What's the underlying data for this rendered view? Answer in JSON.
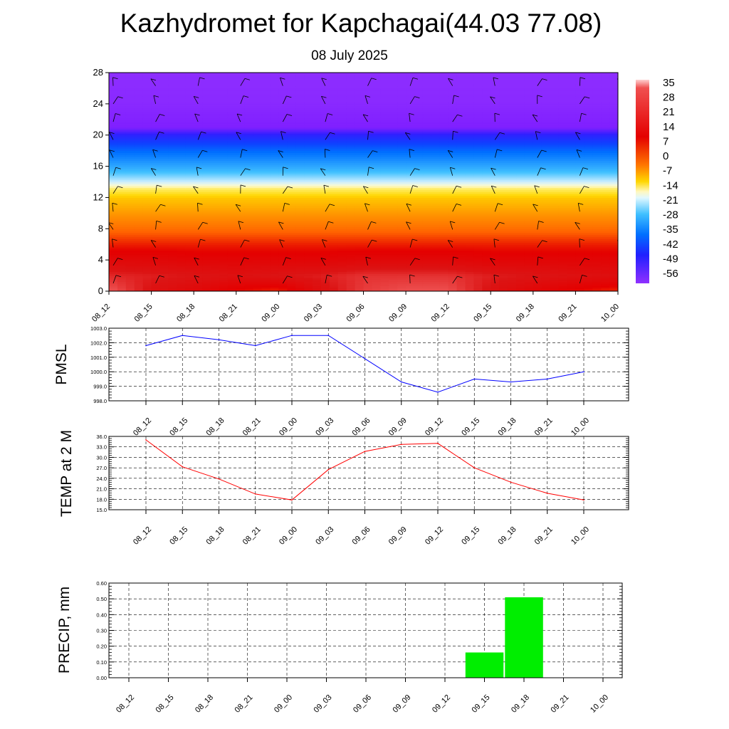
{
  "header": {
    "title": "Kazhydromet for Kapchagai(44.03 77.08)",
    "subtitle": "08 July 2025"
  },
  "time_labels": [
    "08_12",
    "08_15",
    "08_18",
    "08_21",
    "09_00",
    "09_03",
    "09_06",
    "09_09",
    "09_12",
    "09_15",
    "09_18",
    "09_21",
    "10_00"
  ],
  "chart_data": [
    {
      "type": "heatmap",
      "name": "temperature-cross-section",
      "x": [
        "08_12",
        "08_15",
        "08_18",
        "08_21",
        "09_00",
        "09_03",
        "09_06",
        "09_09",
        "09_12",
        "09_15",
        "09_18",
        "09_21",
        "10_00"
      ],
      "ylim": [
        0,
        28
      ],
      "yticks": [
        "0",
        "4",
        "8",
        "12",
        "16",
        "20",
        "24",
        "28"
      ],
      "colorbar": {
        "labels": [
          "35",
          "28",
          "21",
          "14",
          "7",
          "0",
          "-7",
          "-14",
          "-21",
          "-28",
          "-35",
          "-42",
          "-49",
          "-56"
        ],
        "range": [
          -63,
          42
        ]
      },
      "note_profile_levels": [
        0,
        2,
        4,
        6,
        8,
        10,
        12,
        13,
        14,
        16,
        18,
        20,
        21,
        22,
        24,
        26,
        28
      ],
      "values": [
        [
          35,
          27,
          24,
          20,
          18,
          26,
          32,
          34,
          34,
          27,
          23,
          20,
          18
        ],
        [
          30,
          29,
          28,
          27,
          28,
          29,
          31,
          31,
          31,
          29,
          28,
          27,
          26
        ],
        [
          24,
          24,
          23,
          23,
          23,
          23,
          24,
          24,
          24,
          23,
          23,
          23,
          23
        ],
        [
          19,
          19,
          19,
          19,
          19,
          19,
          19,
          19,
          19,
          19,
          19,
          19,
          19
        ],
        [
          13,
          13,
          13,
          13,
          13,
          13,
          13,
          13,
          13,
          13,
          13,
          13,
          13
        ],
        [
          8,
          8,
          8,
          8,
          8,
          8,
          8,
          8,
          8,
          8,
          8,
          8,
          8
        ],
        [
          2,
          2,
          2,
          2,
          2,
          2,
          2,
          2,
          2,
          2,
          2,
          2,
          2
        ],
        [
          -6,
          -6,
          -6,
          -6,
          -6,
          -6,
          -6,
          -6,
          -6,
          -6,
          -6,
          -6,
          -6
        ],
        [
          -14,
          -14,
          -14,
          -14,
          -14,
          -14,
          -14,
          -14,
          -14,
          -14,
          -14,
          -14,
          -14
        ],
        [
          -25,
          -25,
          -25,
          -25,
          -25,
          -25,
          -25,
          -25,
          -25,
          -25,
          -25,
          -25,
          -25
        ],
        [
          -36,
          -36,
          -36,
          -36,
          -36,
          -36,
          -36,
          -36,
          -36,
          -36,
          -36,
          -36,
          -36
        ],
        [
          -48,
          -48,
          -48,
          -48,
          -48,
          -48,
          -48,
          -48,
          -48,
          -48,
          -48,
          -48,
          -48
        ],
        [
          -56,
          -56,
          -56,
          -56,
          -56,
          -56,
          -56,
          -56,
          -56,
          -56,
          -56,
          -56,
          -56
        ],
        [
          -57,
          -57,
          -57,
          -57,
          -57,
          -57,
          -57,
          -57,
          -57,
          -57,
          -57,
          -57,
          -57
        ],
        [
          -60,
          -60,
          -60,
          -60,
          -60,
          -60,
          -60,
          -60,
          -60,
          -60,
          -60,
          -60,
          -60
        ],
        [
          -61,
          -61,
          -61,
          -61,
          -61,
          -61,
          -61,
          -61,
          -61,
          -61,
          -61,
          -61,
          -61
        ],
        [
          -62,
          -62,
          -62,
          -62,
          -62,
          -62,
          -62,
          -62,
          -62,
          -62,
          -62,
          -62,
          -62
        ]
      ],
      "wind_barbs": "shown"
    },
    {
      "type": "line",
      "name": "pmsl",
      "ylabel": "PMSL",
      "ylim": [
        998.0,
        1003.0
      ],
      "yticks": [
        "998.0",
        "999.0",
        "1000.0",
        "1001.0",
        "1002.0",
        "1003.0"
      ],
      "categories": [
        "08_12",
        "08_15",
        "08_18",
        "08_21",
        "09_00",
        "09_03",
        "09_06",
        "09_09",
        "09_12",
        "09_15",
        "09_18",
        "09_21",
        "10_00"
      ],
      "values": [
        1001.8,
        1002.5,
        1002.2,
        1001.8,
        1002.5,
        1002.5,
        1000.9,
        999.3,
        998.6,
        999.5,
        999.3,
        999.5,
        1000.0
      ],
      "color": "#0000ff",
      "grid": true
    },
    {
      "type": "line",
      "name": "temp-2m",
      "ylabel": "TEMP at 2 M",
      "ylim": [
        15.0,
        36.0
      ],
      "yticks": [
        "15.0",
        "18.0",
        "21.0",
        "24.0",
        "27.0",
        "30.0",
        "33.0",
        "36.0"
      ],
      "categories": [
        "08_12",
        "08_15",
        "08_18",
        "08_21",
        "09_00",
        "09_03",
        "09_06",
        "09_09",
        "09_12",
        "09_15",
        "09_18",
        "09_21",
        "10_00"
      ],
      "values": [
        35.0,
        27.3,
        23.8,
        19.5,
        17.8,
        26.5,
        31.7,
        33.7,
        34.0,
        27.0,
        22.9,
        19.7,
        17.8
      ],
      "color": "#ff0000",
      "grid": true
    },
    {
      "type": "bar",
      "name": "precip",
      "ylabel": "PRECIP, mm",
      "ylim": [
        0.0,
        0.6
      ],
      "yticks": [
        "0.00",
        "0.10",
        "0.20",
        "0.30",
        "0.40",
        "0.50",
        "0.60"
      ],
      "categories": [
        "08_12",
        "08_15",
        "08_18",
        "08_21",
        "09_00",
        "09_03",
        "09_06",
        "09_09",
        "09_12",
        "09_15",
        "09_18",
        "09_21",
        "10_00"
      ],
      "values": [
        0,
        0,
        0,
        0,
        0,
        0,
        0,
        0,
        0,
        0.16,
        0.51,
        0,
        0
      ],
      "color": "#00ee00",
      "grid": true
    }
  ]
}
